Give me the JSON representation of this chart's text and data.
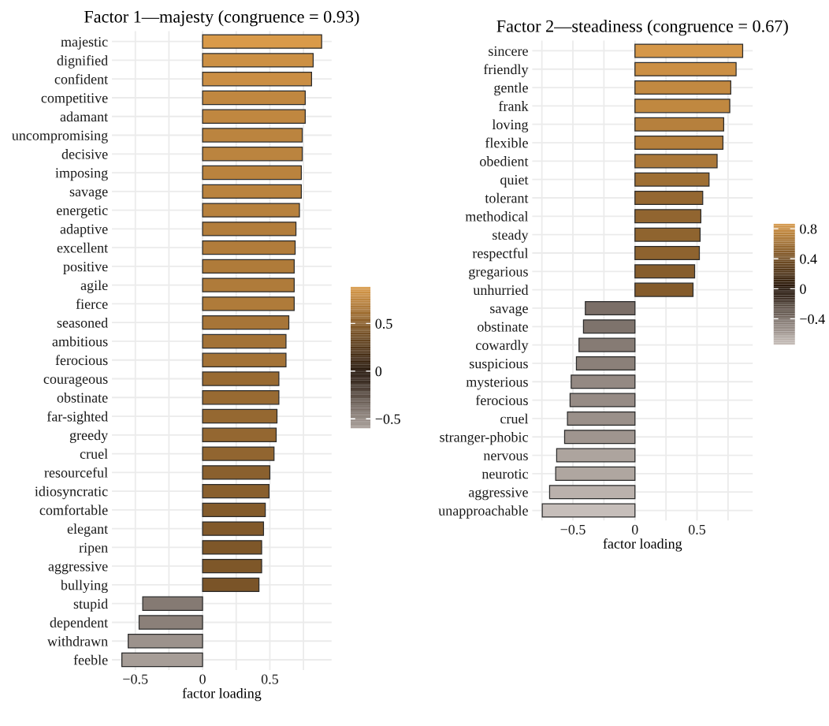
{
  "chart_data": [
    {
      "type": "bar",
      "orientation": "horizontal",
      "title": "Factor 1—majesty (congruence = 0.93)",
      "xlabel": "factor loading",
      "categories": [
        "majestic",
        "dignified",
        "confident",
        "competitive",
        "adamant",
        "uncompromising",
        "decisive",
        "imposing",
        "savage",
        "energetic",
        "adaptive",
        "excellent",
        "positive",
        "agile",
        "fierce",
        "seasoned",
        "ambitious",
        "ferocious",
        "courageous",
        "obstinate",
        "far-sighted",
        "greedy",
        "cruel",
        "resourceful",
        "idiosyncratic",
        "comfortable",
        "elegant",
        "ripen",
        "aggressive",
        "bullying",
        "stupid",
        "dependent",
        "withdrawn",
        "feeble"
      ],
      "values": [
        0.885,
        0.822,
        0.81,
        0.763,
        0.763,
        0.741,
        0.741,
        0.734,
        0.734,
        0.72,
        0.694,
        0.688,
        0.681,
        0.681,
        0.681,
        0.641,
        0.62,
        0.62,
        0.567,
        0.567,
        0.553,
        0.547,
        0.531,
        0.5,
        0.494,
        0.466,
        0.453,
        0.439,
        0.439,
        0.419,
        -0.445,
        -0.472,
        -0.553,
        -0.6
      ],
      "xlim": [
        -0.674,
        0.959
      ],
      "xticks": [
        {
          "value": -0.5,
          "label": "−0.5"
        },
        0,
        0.5,
        {
          "value": -0.25,
          "label": null
        },
        {
          "value": 0.25,
          "label": null
        },
        {
          "value": 0.75,
          "label": null
        }
      ],
      "clim": [
        -0.6,
        0.885
      ],
      "cticks": [
        {
          "value": 0.5,
          "label": "0.5"
        },
        0,
        {
          "value": -0.5,
          "label": "−0.5"
        }
      ],
      "grid": true,
      "legend": false
    },
    {
      "type": "bar",
      "orientation": "horizontal",
      "title": "Factor 2—steadiness (congruence = 0.67)",
      "xlabel": "factor loading",
      "categories": [
        "sincere",
        "friendly",
        "gentle",
        "frank",
        "loving",
        "flexible",
        "obedient",
        "quiet",
        "tolerant",
        "methodical",
        "steady",
        "respectful",
        "gregarious",
        "unhurried",
        "savage",
        "obstinate",
        "cowardly",
        "suspicious",
        "mysterious",
        "ferocious",
        "cruel",
        "stranger-phobic",
        "nervous",
        "neurotic",
        "aggressive",
        "unapproachable"
      ],
      "values": [
        0.868,
        0.815,
        0.772,
        0.764,
        0.715,
        0.709,
        0.662,
        0.597,
        0.546,
        0.531,
        0.525,
        0.519,
        0.481,
        0.468,
        -0.4,
        -0.415,
        -0.451,
        -0.472,
        -0.514,
        -0.523,
        -0.544,
        -0.567,
        -0.631,
        -0.639,
        -0.688,
        -0.747
      ],
      "xlim": [
        -0.828,
        0.949
      ],
      "xticks": [
        {
          "value": -0.5,
          "label": "−0.5"
        },
        0,
        0.5,
        {
          "value": -0.75,
          "label": null
        },
        {
          "value": -0.25,
          "label": null
        },
        {
          "value": 0.25,
          "label": null
        },
        {
          "value": 0.75,
          "label": null
        }
      ],
      "clim": [
        -0.747,
        0.868
      ],
      "cticks": [
        0.8,
        0.4,
        0,
        {
          "value": -0.4,
          "label": "−0.4"
        }
      ],
      "grid": true,
      "legend": false
    }
  ]
}
